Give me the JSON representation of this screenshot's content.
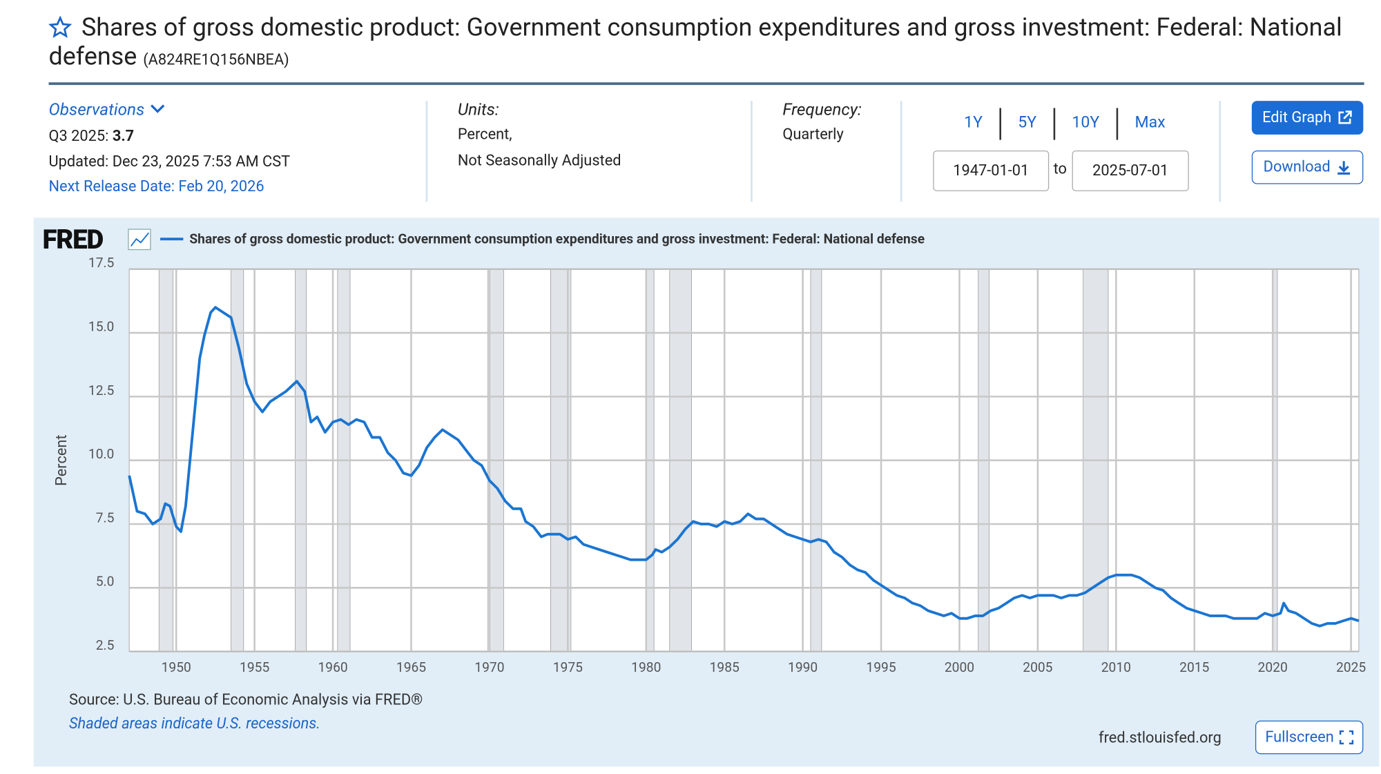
{
  "header": {
    "title": "Shares of gross domestic product: Government consumption expenditures and gross investment: Federal: National defense",
    "series_id": "(A824RE1Q156NBEA)"
  },
  "info": {
    "observations": "Observations",
    "latest_label": "Q3 2025:",
    "latest_value": "3.7",
    "updated": "Updated: Dec 23, 2025 7:53 AM CST",
    "next_release": "Next Release Date: Feb 20, 2026",
    "units_label": "Units:",
    "units_1": "Percent,",
    "units_2": "Not Seasonally Adjusted",
    "frequency_label": "Frequency:",
    "frequency": "Quarterly",
    "ranges": [
      "1Y",
      "5Y",
      "10Y",
      "Max"
    ],
    "start_date": "1947-01-01",
    "to": "to",
    "end_date": "2025-07-01",
    "edit_graph": "Edit Graph",
    "download": "Download"
  },
  "footer": {
    "logo": "FRED",
    "source": "Source: U.S. Bureau of Economic Analysis via FRED®",
    "note": "Shaded areas indicate U.S. recessions.",
    "site": "fred.stlouisfed.org",
    "fullscreen": "Fullscreen"
  },
  "chart_data": {
    "type": "line",
    "y_label": "Percent",
    "x": [
      1947.0,
      1947.5,
      1948.0,
      1948.5,
      1949.0,
      1949.3,
      1949.6,
      1950.0,
      1950.3,
      1950.6,
      1951.0,
      1951.5,
      1951.8,
      1952.2,
      1952.5,
      1953.0,
      1953.5,
      1954.0,
      1954.5,
      1955.0,
      1955.5,
      1956.0,
      1956.5,
      1957.0,
      1957.7,
      1958.2,
      1958.6,
      1959.0,
      1959.5,
      1960.0,
      1960.5,
      1961.0,
      1961.5,
      1962.0,
      1962.5,
      1963.0,
      1963.5,
      1964.0,
      1964.5,
      1965.0,
      1965.5,
      1966.0,
      1966.5,
      1967.0,
      1967.5,
      1968.0,
      1968.5,
      1969.0,
      1969.5,
      1970.0,
      1970.5,
      1971.0,
      1971.5,
      1972.0,
      1972.3,
      1972.8,
      1973.3,
      1973.7,
      1974.5,
      1975.0,
      1975.5,
      1976.0,
      1976.5,
      1977.5,
      1978.0,
      1978.5,
      1979.0,
      1980.0,
      1980.4,
      1980.6,
      1981.0,
      1981.5,
      1982.0,
      1982.5,
      1983.0,
      1983.5,
      1984.0,
      1984.5,
      1985.0,
      1985.5,
      1986.0,
      1986.5,
      1987.0,
      1987.5,
      1988.0,
      1988.5,
      1989.0,
      1989.5,
      1990.0,
      1990.5,
      1991.0,
      1991.5,
      1992.0,
      1992.5,
      1993.0,
      1993.5,
      1994.0,
      1994.5,
      1995.0,
      1995.5,
      1996.0,
      1996.5,
      1997.0,
      1997.5,
      1998.0,
      1998.5,
      1999.0,
      1999.5,
      2000.0,
      2000.5,
      2001.0,
      2001.5,
      2002.0,
      2002.5,
      2003.0,
      2003.5,
      2004.0,
      2004.5,
      2005.0,
      2006.0,
      2006.5,
      2007.0,
      2007.5,
      2008.0,
      2008.5,
      2009.0,
      2009.5,
      2010.0,
      2011.0,
      2011.5,
      2012.0,
      2012.5,
      2013.0,
      2013.5,
      2014.0,
      2014.5,
      2015.0,
      2015.5,
      2016.0,
      2017.0,
      2017.5,
      2019.0,
      2019.5,
      2020.0,
      2020.5,
      2020.7,
      2021.0,
      2021.5,
      2022.0,
      2022.5,
      2023.0,
      2023.5,
      2024.0,
      2024.5,
      2025.0,
      2025.5
    ],
    "series": [
      {
        "name": "Shares of gross domestic product: Government consumption expenditures and gross investment: Federal: National defense",
        "color": "#1a75d2",
        "values": [
          9.4,
          8.0,
          7.9,
          7.5,
          7.7,
          8.3,
          8.2,
          7.4,
          7.2,
          8.2,
          10.8,
          14.0,
          14.9,
          15.8,
          16.0,
          15.8,
          15.6,
          14.4,
          13.0,
          12.3,
          11.9,
          12.3,
          12.5,
          12.7,
          13.1,
          12.7,
          11.5,
          11.7,
          11.1,
          11.5,
          11.6,
          11.4,
          11.6,
          11.5,
          10.9,
          10.9,
          10.3,
          10.0,
          9.5,
          9.4,
          9.8,
          10.5,
          10.9,
          11.2,
          11.0,
          10.8,
          10.4,
          10.0,
          9.8,
          9.2,
          8.9,
          8.4,
          8.1,
          8.1,
          7.6,
          7.4,
          7.0,
          7.1,
          7.1,
          6.9,
          7.0,
          6.7,
          6.6,
          6.4,
          6.3,
          6.2,
          6.1,
          6.1,
          6.3,
          6.5,
          6.4,
          6.6,
          6.9,
          7.3,
          7.6,
          7.5,
          7.5,
          7.4,
          7.6,
          7.5,
          7.6,
          7.9,
          7.7,
          7.7,
          7.5,
          7.3,
          7.1,
          7.0,
          6.9,
          6.8,
          6.9,
          6.8,
          6.4,
          6.2,
          5.9,
          5.7,
          5.6,
          5.3,
          5.1,
          4.9,
          4.7,
          4.6,
          4.4,
          4.3,
          4.1,
          4.0,
          3.9,
          4.0,
          3.8,
          3.8,
          3.9,
          3.9,
          4.1,
          4.2,
          4.4,
          4.6,
          4.7,
          4.6,
          4.7,
          4.7,
          4.6,
          4.7,
          4.7,
          4.8,
          5.0,
          5.2,
          5.4,
          5.5,
          5.5,
          5.4,
          5.2,
          5.0,
          4.9,
          4.6,
          4.4,
          4.2,
          4.1,
          4.0,
          3.9,
          3.9,
          3.8,
          3.8,
          4.0,
          3.9,
          4.0,
          4.4,
          4.1,
          4.0,
          3.8,
          3.6,
          3.5,
          3.6,
          3.6,
          3.7,
          3.8,
          3.7
        ]
      }
    ],
    "recessions": [
      [
        1948.9,
        1949.8
      ],
      [
        1953.5,
        1954.3
      ],
      [
        1957.6,
        1958.3
      ],
      [
        1960.3,
        1961.1
      ],
      [
        1969.9,
        1970.9
      ],
      [
        1973.9,
        1975.2
      ],
      [
        1980.0,
        1980.5
      ],
      [
        1981.5,
        1982.9
      ],
      [
        1990.5,
        1991.2
      ],
      [
        2001.2,
        2001.9
      ],
      [
        2007.9,
        2009.5
      ],
      [
        2020.0,
        2020.3
      ]
    ],
    "recession_color": "#e1e4e8",
    "xlim": [
      1947,
      2025.5
    ],
    "xticks": [
      1950,
      1955,
      1960,
      1965,
      1970,
      1975,
      1980,
      1985,
      1990,
      1995,
      2000,
      2005,
      2010,
      2015,
      2020,
      2025
    ],
    "ylim": [
      2.5,
      17.5
    ],
    "yticks": [
      2.5,
      {
        "value": 5,
        "label": "5.0"
      },
      7.5,
      {
        "value": 10,
        "label": "10.0"
      },
      12.5,
      {
        "value": 15,
        "label": "15.0"
      },
      17.5
    ],
    "grid": true
  }
}
